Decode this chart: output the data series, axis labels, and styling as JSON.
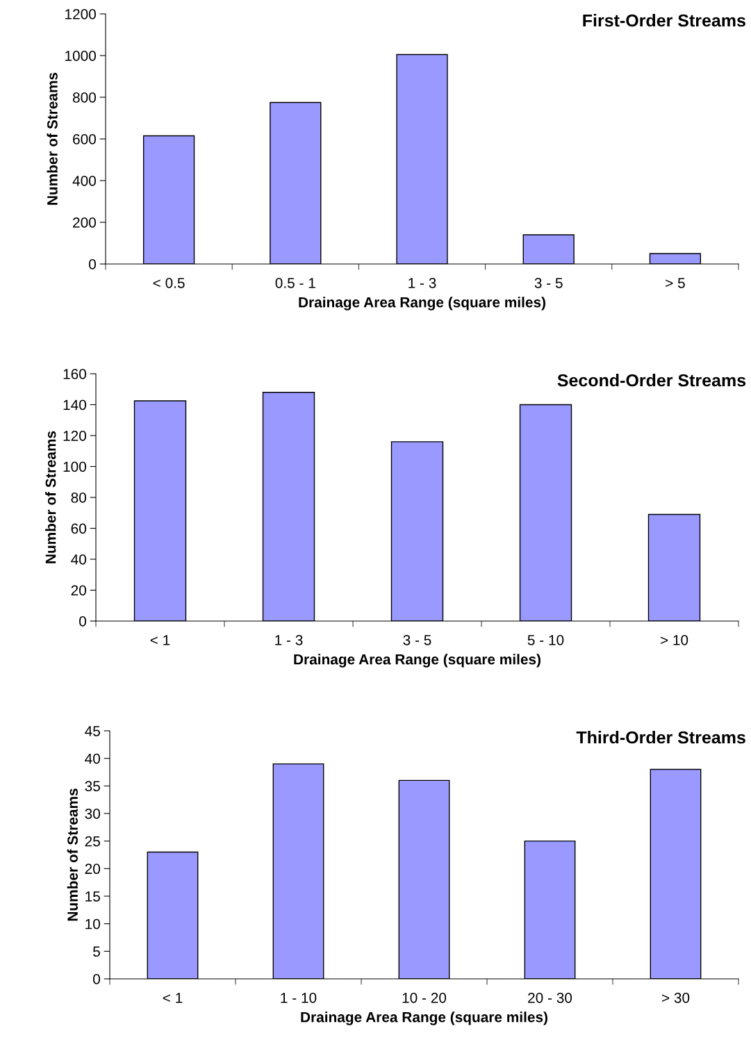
{
  "chart_data": [
    {
      "type": "bar",
      "title": "First-Order Streams",
      "xlabel": "Drainage Area Range (square miles)",
      "ylabel": "Number of Streams",
      "categories": [
        "< 0.5",
        "0.5 - 1",
        "1 - 3",
        "3 - 5",
        "> 5"
      ],
      "values": [
        615,
        775,
        1005,
        140,
        50
      ],
      "color": "#9999ff",
      "ylim": [
        0,
        1200
      ],
      "yticks": [
        0,
        200,
        400,
        600,
        800,
        1000,
        1200
      ],
      "grid": false,
      "legend": false
    },
    {
      "type": "bar",
      "title": "Second-Order Streams",
      "xlabel": "Drainage Area Range (square miles)",
      "ylabel": "Number of Streams",
      "categories": [
        "< 1",
        "1 - 3",
        "3 - 5",
        "5 - 10",
        "> 10"
      ],
      "values": [
        142.5,
        148,
        116,
        140,
        69
      ],
      "color": "#9999ff",
      "ylim": [
        0,
        160
      ],
      "yticks": [
        0,
        20,
        40,
        60,
        80,
        100,
        120,
        140,
        160
      ],
      "grid": false,
      "legend": false
    },
    {
      "type": "bar",
      "title": "Third-Order Streams",
      "xlabel": "Drainage Area Range (square miles)",
      "ylabel": "Number of Streams",
      "categories": [
        "< 1",
        "1 - 10",
        "10 - 20",
        "20 - 30",
        "> 30"
      ],
      "values": [
        23,
        39,
        36,
        25,
        38
      ],
      "color": "#9999ff",
      "ylim": [
        0,
        45
      ],
      "yticks": [
        0,
        5,
        10,
        15,
        20,
        25,
        30,
        35,
        40,
        45
      ],
      "grid": false,
      "legend": false
    }
  ]
}
